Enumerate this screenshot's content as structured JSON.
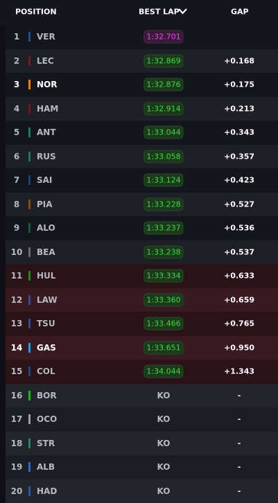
{
  "header": {
    "position": "POSITION",
    "best_lap": "BEST LAP",
    "gap": "GAP"
  },
  "rows": [
    {
      "position": 1,
      "driver": "VER",
      "color": "#2a4a8a",
      "best_lap": "1:32.701",
      "gap": null,
      "highlight": false
    },
    {
      "position": 2,
      "driver": "LEC",
      "color": "#7a1424",
      "best_lap": "1:32.869",
      "gap": "+0.168",
      "highlight": false
    },
    {
      "position": 3,
      "driver": "NOR",
      "color": "#ff8000",
      "best_lap": "1:32.876",
      "gap": "+0.175",
      "highlight": true
    },
    {
      "position": 4,
      "driver": "HAM",
      "color": "#7a1424",
      "best_lap": "1:32.914",
      "gap": "+0.213",
      "highlight": false
    },
    {
      "position": 5,
      "driver": "ANT",
      "color": "#1c7a6a",
      "best_lap": "1:33.044",
      "gap": "+0.343",
      "highlight": false
    },
    {
      "position": 6,
      "driver": "RUS",
      "color": "#1c7a6a",
      "best_lap": "1:33.058",
      "gap": "+0.357",
      "highlight": false
    },
    {
      "position": 7,
      "driver": "SAI",
      "color": "#1e3f7a",
      "best_lap": "1:33.124",
      "gap": "+0.423",
      "highlight": false
    },
    {
      "position": 8,
      "driver": "PIA",
      "color": "#8a4a14",
      "best_lap": "1:33.228",
      "gap": "+0.527",
      "highlight": false
    },
    {
      "position": 9,
      "driver": "ALO",
      "color": "#1a5a40",
      "best_lap": "1:33.237",
      "gap": "+0.536",
      "highlight": false
    },
    {
      "position": 10,
      "driver": "BEA",
      "color": "#6a6a70",
      "best_lap": "1:33.238",
      "gap": "+0.537",
      "highlight": false
    },
    {
      "position": 11,
      "driver": "HUL",
      "color": "#1e8a1e",
      "best_lap": "1:33.334",
      "gap": "+0.633",
      "highlight": false
    },
    {
      "position": 12,
      "driver": "LAW",
      "color": "#3a4a8a",
      "best_lap": "1:33.360",
      "gap": "+0.659",
      "highlight": false
    },
    {
      "position": 13,
      "driver": "TSU",
      "color": "#3a4a8a",
      "best_lap": "1:33.466",
      "gap": "+0.765",
      "highlight": false
    },
    {
      "position": 14,
      "driver": "GAS",
      "color": "#22a0f0",
      "best_lap": "1:33.651",
      "gap": "+0.950",
      "highlight": true
    },
    {
      "position": 15,
      "driver": "COL",
      "color": "#1e4a7a",
      "best_lap": "1:34.044",
      "gap": "+1.343",
      "highlight": false
    },
    {
      "position": 16,
      "driver": "BOR",
      "color": "#10c010",
      "best_lap": "KO",
      "gap": "-",
      "highlight": false
    },
    {
      "position": 17,
      "driver": "OCO",
      "color": "#a0a0a8",
      "best_lap": "KO",
      "gap": "-",
      "highlight": false
    },
    {
      "position": 18,
      "driver": "STR",
      "color": "#1e8a6a",
      "best_lap": "KO",
      "gap": "-",
      "highlight": false
    },
    {
      "position": 19,
      "driver": "ALB",
      "color": "#2a6ad0",
      "best_lap": "KO",
      "gap": "-",
      "highlight": false
    },
    {
      "position": 20,
      "driver": "HAD",
      "color": "#2a5ab0",
      "best_lap": "KO",
      "gap": "-",
      "highlight": false
    }
  ]
}
